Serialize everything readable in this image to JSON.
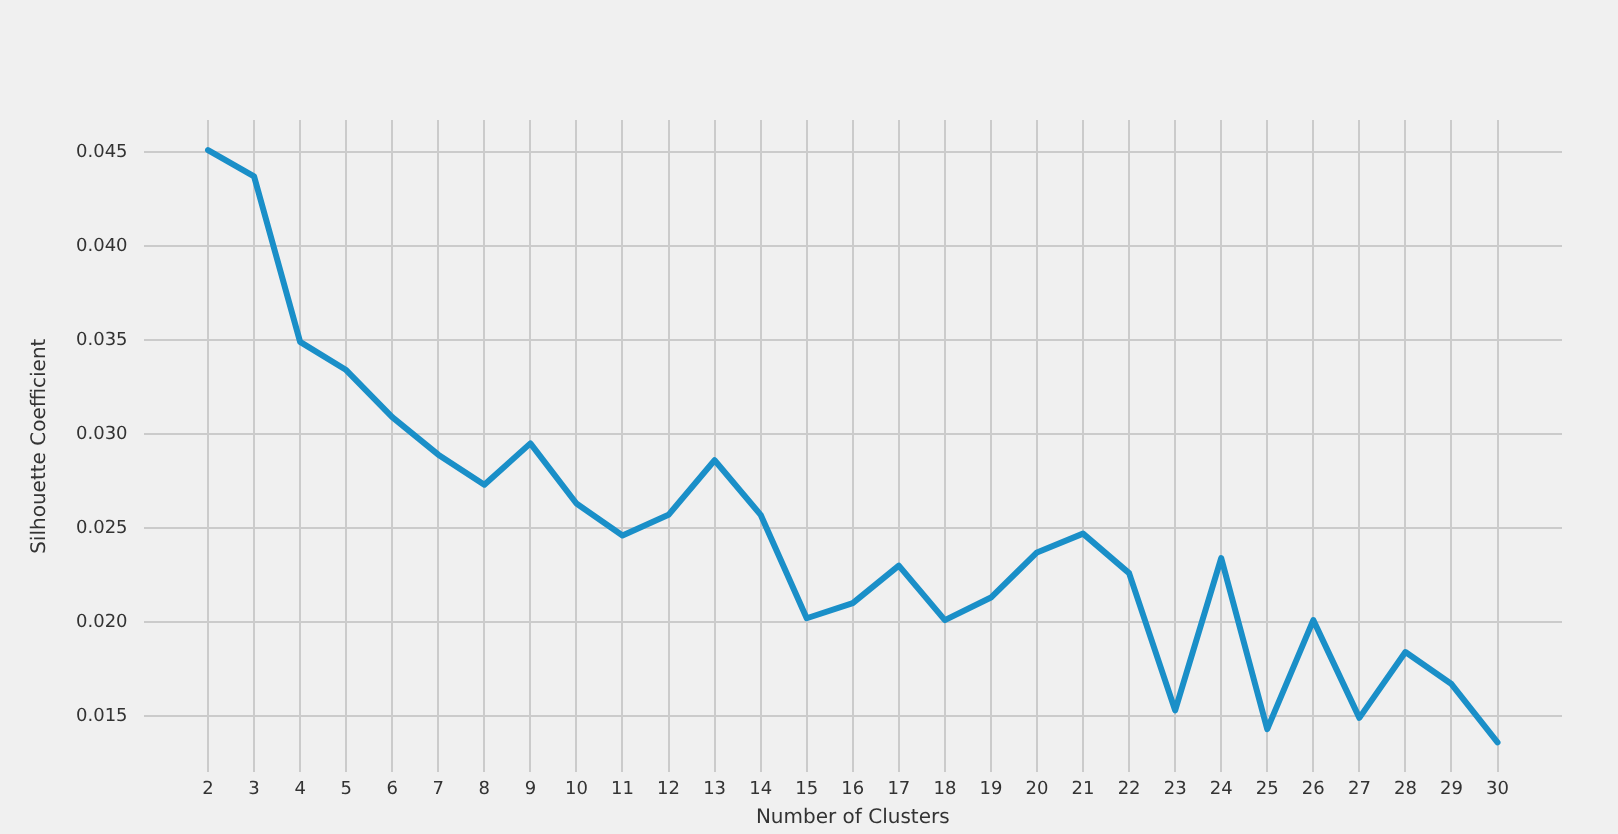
{
  "chart_data": {
    "type": "line",
    "xlabel": "Number of Clusters",
    "ylabel": "Silhouette Coefficient",
    "x": [
      2,
      3,
      4,
      5,
      6,
      7,
      8,
      9,
      10,
      11,
      12,
      13,
      14,
      15,
      16,
      17,
      18,
      19,
      20,
      21,
      22,
      23,
      24,
      25,
      26,
      27,
      28,
      29,
      30
    ],
    "series": [
      {
        "color": "#1a8fc8",
        "values": [
          0.0451,
          0.0437,
          0.0349,
          0.0334,
          0.0309,
          0.0289,
          0.0273,
          0.0295,
          0.0263,
          0.0246,
          0.0257,
          0.0286,
          0.0257,
          0.0202,
          0.021,
          0.023,
          0.0201,
          0.0213,
          0.0237,
          0.0247,
          0.0226,
          0.0153,
          0.0234,
          0.0143,
          0.0201,
          0.0149,
          0.0184,
          0.0167,
          0.0136
        ]
      }
    ],
    "xlim": [
      0.6,
      31.4
    ],
    "xticks": [
      2,
      3,
      4,
      5,
      6,
      7,
      8,
      9,
      10,
      11,
      12,
      13,
      14,
      15,
      16,
      17,
      18,
      19,
      20,
      21,
      22,
      23,
      24,
      25,
      26,
      27,
      28,
      29,
      30
    ],
    "ylim": [
      0.012,
      0.0467
    ],
    "yticks": [
      0.015,
      {
        "value": 0.02,
        "label": "0.020"
      },
      0.025,
      {
        "value": 0.03,
        "label": "0.030"
      },
      0.035,
      {
        "value": 0.04,
        "label": "0.040"
      },
      0.045
    ],
    "grid": true,
    "legend": false,
    "marker": "none",
    "line_style": "solid"
  }
}
